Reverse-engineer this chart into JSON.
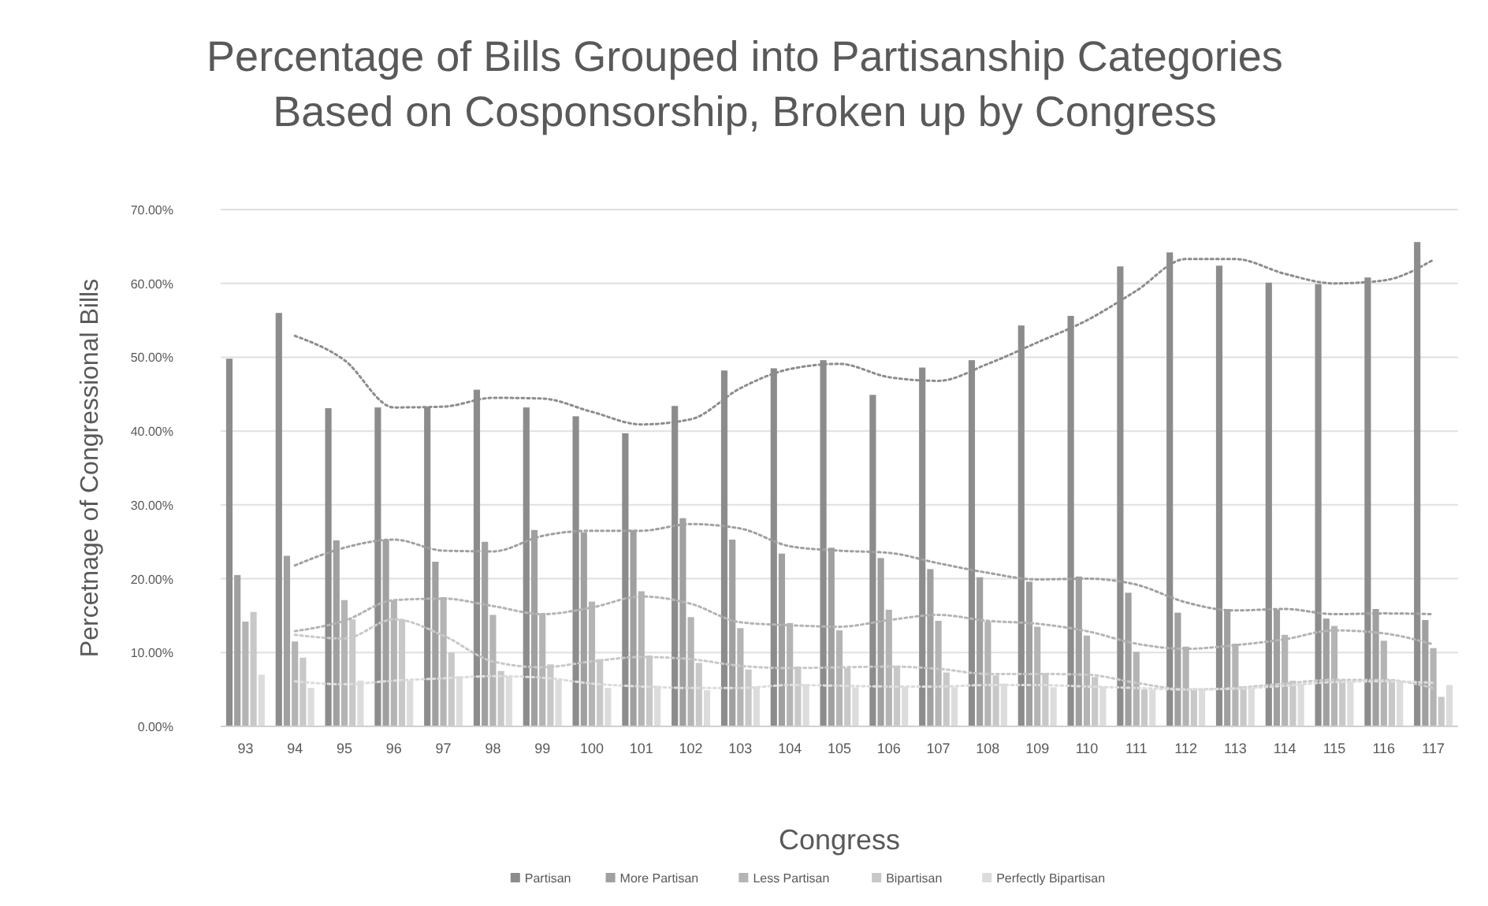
{
  "chart_data": {
    "type": "bar",
    "title": "Percentage of Bills Grouped into Partisanship Categories\nBased on Cosponsorship, Broken up by Congress",
    "xlabel": "Congress",
    "ylabel": "Percetnage of Congressional Bills",
    "categories": [
      "93",
      "94",
      "95",
      "96",
      "97",
      "98",
      "99",
      "100",
      "101",
      "102",
      "103",
      "104",
      "105",
      "106",
      "107",
      "108",
      "109",
      "110",
      "111",
      "112",
      "113",
      "114",
      "115",
      "116",
      "117"
    ],
    "ylim": [
      0,
      70
    ],
    "yticks": [
      {
        "value": 0,
        "label": "0.00%"
      },
      {
        "value": 10,
        "label": "10.00%"
      },
      {
        "value": 20,
        "label": "20.00%"
      },
      {
        "value": 30,
        "label": "30.00%"
      },
      {
        "value": 40,
        "label": "40.00%"
      },
      {
        "value": 50,
        "label": "50.00%"
      },
      {
        "value": 60,
        "label": "60.00%"
      },
      {
        "value": 70,
        "label": "70.00%"
      }
    ],
    "grid": "y",
    "legend": "bottom",
    "series": [
      {
        "name": "Partisan",
        "color": "#8c8c8c",
        "values": [
          49.8,
          56.0,
          43.1,
          43.2,
          43.3,
          45.6,
          43.2,
          42.0,
          39.7,
          43.4,
          48.2,
          48.5,
          49.6,
          44.9,
          48.6,
          49.6,
          54.3,
          55.6,
          62.3,
          64.2,
          62.4,
          60.1,
          59.9,
          60.8,
          65.6
        ]
      },
      {
        "name": "More Partisan",
        "color": "#a0a0a0",
        "values": [
          20.5,
          23.1,
          25.2,
          25.3,
          22.3,
          25.0,
          26.6,
          26.3,
          26.6,
          28.2,
          25.3,
          23.4,
          24.2,
          22.8,
          21.3,
          20.2,
          19.6,
          20.3,
          18.1,
          15.4,
          15.9,
          15.8,
          14.6,
          15.9,
          14.4
        ]
      },
      {
        "name": "Less Partisan",
        "color": "#b4b4b4",
        "values": [
          14.2,
          11.5,
          17.1,
          17.1,
          17.5,
          15.1,
          15.3,
          16.9,
          18.3,
          14.8,
          13.3,
          14.0,
          13.0,
          15.8,
          14.3,
          14.2,
          13.5,
          12.3,
          10.1,
          10.8,
          11.2,
          12.4,
          13.6,
          11.6,
          10.6
        ]
      },
      {
        "name": "Bipartisan",
        "color": "#c8c8c8",
        "values": [
          15.5,
          9.3,
          14.5,
          14.5,
          10.0,
          7.5,
          8.4,
          9.1,
          9.6,
          8.6,
          7.7,
          8.1,
          7.9,
          8.2,
          7.3,
          6.9,
          7.2,
          6.7,
          5.0,
          4.9,
          5.4,
          6.2,
          6.3,
          6.3,
          4.0
        ]
      },
      {
        "name": "Perfectly Bipartisan",
        "color": "#dcdcdc",
        "values": [
          7.0,
          5.2,
          6.2,
          6.2,
          6.8,
          6.8,
          6.3,
          5.2,
          5.5,
          4.9,
          5.4,
          5.7,
          5.3,
          5.4,
          5.3,
          5.8,
          5.3,
          5.4,
          5.0,
          5.0,
          5.2,
          5.8,
          6.1,
          6.1,
          5.6
        ]
      },
      {
        "type": "line",
        "line_style": "dotted",
        "marker": "none",
        "color": "#8c8c8c",
        "values": [
          null,
          52.9,
          49.6,
          43.2,
          43.3,
          44.5,
          44.4,
          42.6,
          40.9,
          41.6,
          45.8,
          48.4,
          49.1,
          47.3,
          46.8,
          49.1,
          52.0,
          55.0,
          59.0,
          63.3,
          63.3,
          61.3,
          60.0,
          60.4,
          63.2
        ]
      },
      {
        "type": "line",
        "line_style": "dotted",
        "marker": "none",
        "color": "#a0a0a0",
        "values": [
          null,
          21.8,
          24.2,
          25.3,
          23.8,
          23.7,
          25.8,
          26.5,
          26.5,
          27.4,
          26.8,
          24.4,
          23.8,
          23.5,
          22.1,
          20.8,
          19.9,
          20.0,
          19.2,
          16.8,
          15.7,
          15.9,
          15.2,
          15.3,
          15.2
        ]
      },
      {
        "type": "line",
        "line_style": "dotted",
        "marker": "none",
        "color": "#b4b4b4",
        "values": [
          null,
          12.9,
          14.3,
          17.1,
          17.3,
          16.3,
          15.2,
          16.1,
          17.6,
          16.6,
          14.1,
          13.7,
          13.5,
          14.4,
          15.1,
          14.3,
          13.9,
          12.9,
          11.2,
          10.5,
          11.0,
          11.8,
          13.0,
          12.6,
          11.1
        ]
      },
      {
        "type": "line",
        "line_style": "dotted",
        "marker": "none",
        "color": "#c8c8c8",
        "values": [
          null,
          12.4,
          11.9,
          14.5,
          12.3,
          8.8,
          8.0,
          8.8,
          9.4,
          9.1,
          8.2,
          7.9,
          8.0,
          8.1,
          7.8,
          7.1,
          7.1,
          7.0,
          5.9,
          5.0,
          5.2,
          5.8,
          6.3,
          6.3,
          5.2
        ]
      },
      {
        "type": "line",
        "line_style": "dotted",
        "marker": "none",
        "color": "#dcdcdc",
        "values": [
          null,
          6.1,
          5.7,
          6.2,
          6.5,
          6.8,
          6.6,
          5.8,
          5.4,
          5.2,
          5.2,
          5.6,
          5.5,
          5.4,
          5.4,
          5.6,
          5.6,
          5.4,
          5.2,
          5.0,
          5.1,
          5.5,
          6.0,
          6.1,
          5.9
        ]
      }
    ]
  }
}
